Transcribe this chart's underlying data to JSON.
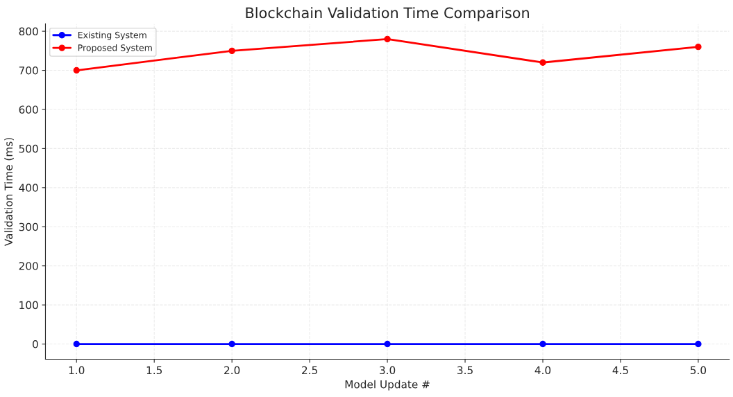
{
  "chart_data": {
    "type": "line",
    "title": "Blockchain Validation Time Comparison",
    "xlabel": "Model Update #",
    "ylabel": "Validation Time (ms)",
    "x": [
      1,
      2,
      3,
      4,
      5
    ],
    "series": [
      {
        "name": "Existing System",
        "color": "#0000ff",
        "values": [
          0,
          0,
          0,
          0,
          0
        ]
      },
      {
        "name": "Proposed System",
        "color": "#ff0000",
        "values": [
          700,
          750,
          780,
          720,
          760
        ]
      }
    ],
    "xlim": [
      0.8,
      5.2
    ],
    "xticks": [
      {
        "value": 1,
        "label": "1.0"
      },
      {
        "value": 1.5,
        "label": "1.5"
      },
      {
        "value": 2,
        "label": "2.0"
      },
      {
        "value": 2.5,
        "label": "2.5"
      },
      {
        "value": 3,
        "label": "3.0"
      },
      {
        "value": 3.5,
        "label": "3.5"
      },
      {
        "value": 4,
        "label": "4.0"
      },
      {
        "value": 4.5,
        "label": "4.5"
      },
      {
        "value": 5,
        "label": "5.0"
      }
    ],
    "ylim": [
      -39,
      819
    ],
    "yticks": [
      0,
      100,
      200,
      300,
      400,
      500,
      600,
      700,
      800
    ],
    "grid": true,
    "legend": "top left",
    "marker": "circle",
    "line_style": "solid"
  }
}
